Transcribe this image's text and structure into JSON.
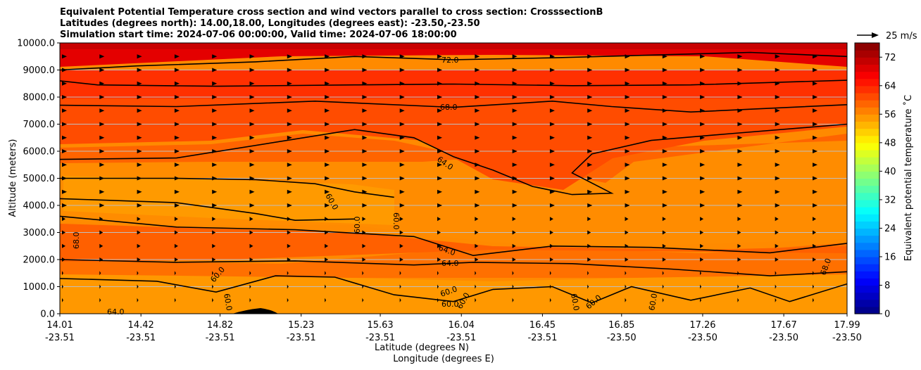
{
  "chart_data": {
    "type": "contour-cross-section",
    "title_lines": [
      "Equivalent Potential Temperature cross section and wind vectors parallel to cross section: CrosssectionB",
      "Latitudes (degrees north): 14.00,18.00, Longitudes (degrees east): -23.50,-23.50",
      "Simulation start time: 2024-07-06 00:00:00, Valid time: 2024-07-06 18:00:00"
    ],
    "ylabel": "Altitude (meters)",
    "xlabel_lat": "Latitude (degrees N)",
    "xlabel_lon": "Longitude (degrees E)",
    "ylim": [
      0,
      10000
    ],
    "yticks": [
      "0.0",
      "1000.0",
      "2000.0",
      "3000.0",
      "4000.0",
      "5000.0",
      "6000.0",
      "7000.0",
      "8000.0",
      "9000.0",
      "10000.0"
    ],
    "xlim": [
      14.01,
      17.99
    ],
    "xticks": [
      {
        "lat": "14.01",
        "lon": "-23.51"
      },
      {
        "lat": "14.42",
        "lon": "-23.51"
      },
      {
        "lat": "14.82",
        "lon": "-23.51"
      },
      {
        "lat": "15.23",
        "lon": "-23.51"
      },
      {
        "lat": "15.63",
        "lon": "-23.51"
      },
      {
        "lat": "16.04",
        "lon": "-23.51"
      },
      {
        "lat": "16.45",
        "lon": "-23.51"
      },
      {
        "lat": "16.85",
        "lon": "-23.50"
      },
      {
        "lat": "17.26",
        "lon": "-23.50"
      },
      {
        "lat": "17.67",
        "lon": "-23.50"
      },
      {
        "lat": "17.99",
        "lon": "-23.50"
      }
    ],
    "colorbar": {
      "label": "Equivalent potential temperature ˚C",
      "range": [
        0,
        76
      ],
      "ticks": [
        "0",
        "8",
        "16",
        "24",
        "32",
        "40",
        "48",
        "56",
        "64",
        "72"
      ]
    },
    "quiver_key": "25 m/s",
    "contour_labels": [
      "72.0",
      "68.0",
      "64.0",
      "60.0",
      "60.0",
      "60.0",
      "64.0",
      "64.0",
      "60.0",
      "60.0",
      "60.0",
      "68.0",
      "64.0",
      "60.0",
      "60.0",
      "60.0",
      "60.0",
      "60.0",
      "68.0"
    ],
    "contours": [
      {
        "level": 72,
        "points": [
          [
            14.01,
            9000
          ],
          [
            14.4,
            9150
          ],
          [
            15.0,
            9300
          ],
          [
            15.5,
            9500
          ],
          [
            16.0,
            9380
          ],
          [
            16.5,
            9450
          ],
          [
            17.0,
            9550
          ],
          [
            17.5,
            9650
          ],
          [
            17.99,
            9500
          ]
        ]
      },
      {
        "level": 68,
        "points": [
          [
            14.01,
            8600
          ],
          [
            14.2,
            8450
          ],
          [
            14.8,
            8400
          ],
          [
            15.5,
            8450
          ],
          [
            16.0,
            8480
          ],
          [
            16.6,
            8420
          ],
          [
            17.2,
            8450
          ],
          [
            17.99,
            8620
          ]
        ]
      },
      {
        "level": 68,
        "points": [
          [
            14.01,
            7700
          ],
          [
            14.6,
            7650
          ],
          [
            15.3,
            7850
          ],
          [
            16.0,
            7620
          ],
          [
            16.5,
            7850
          ],
          [
            16.8,
            7650
          ],
          [
            17.2,
            7450
          ],
          [
            17.99,
            7720
          ]
        ]
      },
      {
        "level": 64,
        "points": [
          [
            14.01,
            5700
          ],
          [
            14.6,
            5750
          ],
          [
            15.2,
            6450
          ],
          [
            15.5,
            6800
          ],
          [
            15.8,
            6500
          ],
          [
            16.0,
            5800
          ],
          [
            16.2,
            5300
          ],
          [
            16.4,
            4700
          ],
          [
            16.6,
            4400
          ],
          [
            16.8,
            4450
          ],
          [
            16.6,
            5200
          ],
          [
            16.7,
            5900
          ],
          [
            17.0,
            6400
          ],
          [
            17.4,
            6650
          ],
          [
            17.99,
            7000
          ]
        ]
      },
      {
        "level": 64,
        "points": [
          [
            14.01,
            5000
          ],
          [
            14.6,
            5000
          ],
          [
            15.0,
            4950
          ],
          [
            15.3,
            4800
          ],
          [
            15.5,
            4500
          ],
          [
            15.7,
            4300
          ]
        ]
      },
      {
        "level": 60,
        "points": [
          [
            14.01,
            4250
          ],
          [
            14.6,
            4100
          ],
          [
            15.0,
            3700
          ],
          [
            15.2,
            3450
          ],
          [
            15.5,
            3500
          ]
        ]
      },
      {
        "level": 64,
        "points": [
          [
            14.01,
            3600
          ],
          [
            14.6,
            3200
          ],
          [
            15.2,
            3100
          ],
          [
            15.8,
            2850
          ],
          [
            16.1,
            2150
          ],
          [
            16.5,
            2500
          ],
          [
            17.0,
            2450
          ],
          [
            17.6,
            2250
          ],
          [
            17.99,
            2600
          ]
        ]
      },
      {
        "level": 64,
        "points": [
          [
            14.01,
            2000
          ],
          [
            14.6,
            1900
          ],
          [
            15.2,
            1950
          ],
          [
            15.8,
            1800
          ],
          [
            16.1,
            1900
          ],
          [
            16.6,
            1850
          ],
          [
            17.1,
            1650
          ],
          [
            17.6,
            1400
          ],
          [
            17.99,
            1550
          ]
        ]
      },
      {
        "level": 60,
        "points": [
          [
            14.01,
            1300
          ],
          [
            14.5,
            1200
          ],
          [
            14.8,
            800
          ],
          [
            15.1,
            1400
          ],
          [
            15.4,
            1350
          ],
          [
            15.7,
            700
          ],
          [
            16.0,
            450
          ],
          [
            16.2,
            900
          ],
          [
            16.5,
            1000
          ],
          [
            16.7,
            400
          ],
          [
            16.9,
            1000
          ],
          [
            17.2,
            500
          ],
          [
            17.5,
            950
          ],
          [
            17.7,
            450
          ],
          [
            17.99,
            1100
          ]
        ]
      }
    ]
  }
}
